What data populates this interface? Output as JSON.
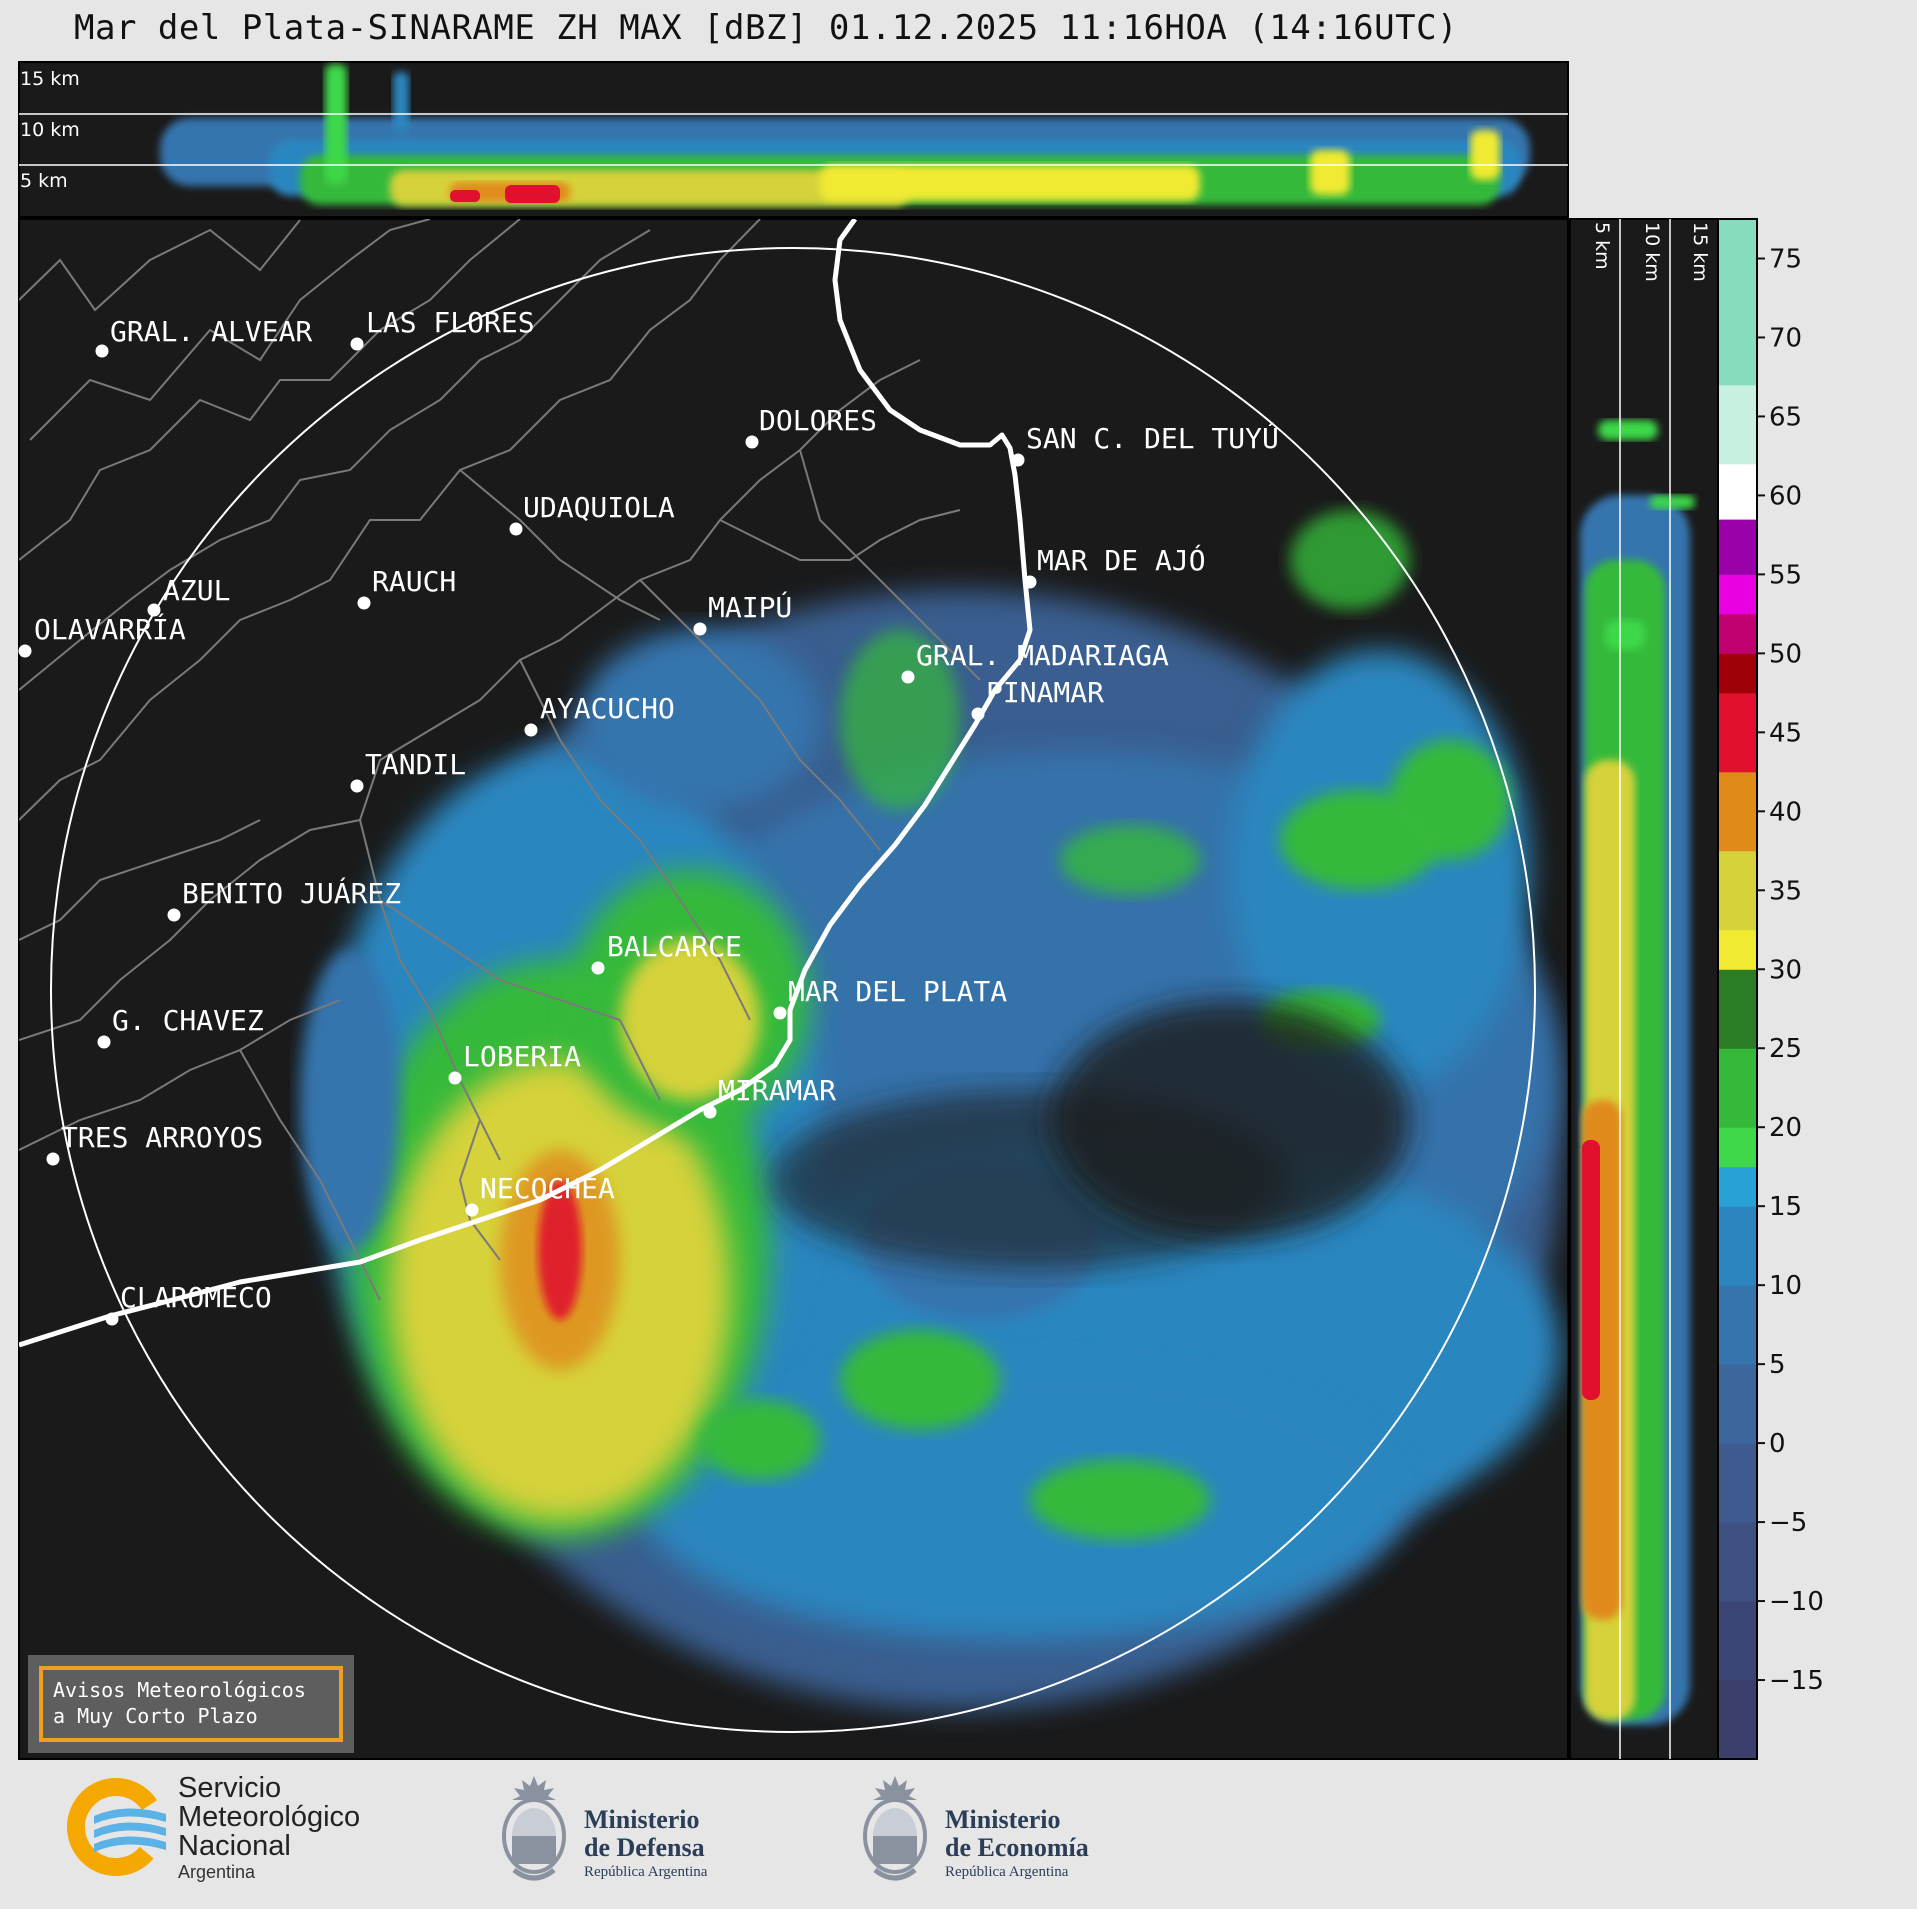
{
  "title": "Mar del Plata-SINARAME ZH MAX [dBZ] 01.12.2025 11:16HOA (14:16UTC)",
  "top_panel": {
    "height_labels": [
      "15 km",
      "10 km",
      "5 km"
    ]
  },
  "side_panel": {
    "height_labels": [
      "5 km",
      "10 km",
      "15 km"
    ]
  },
  "colorbar": {
    "ticks": [
      "75",
      "70",
      "65",
      "60",
      "55",
      "50",
      "45",
      "40",
      "35",
      "30",
      "25",
      "20",
      "15",
      "10",
      "5",
      "0",
      "−5",
      "−10",
      "−15"
    ],
    "tick_values": [
      75,
      70,
      65,
      60,
      55,
      50,
      45,
      40,
      35,
      30,
      25,
      20,
      15,
      10,
      5,
      0,
      -5,
      -10,
      -15
    ],
    "range": [
      -20,
      77.5
    ],
    "stops": [
      {
        "from": -20,
        "to": -15,
        "color": "#3a3f6b"
      },
      {
        "from": -15,
        "to": -10,
        "color": "#3c4676"
      },
      {
        "from": -10,
        "to": -5,
        "color": "#3e4f82"
      },
      {
        "from": -5,
        "to": 0,
        "color": "#3e5a8e"
      },
      {
        "from": 0,
        "to": 5,
        "color": "#3c669c"
      },
      {
        "from": 5,
        "to": 10,
        "color": "#3574ad"
      },
      {
        "from": 10,
        "to": 15,
        "color": "#2b86bf"
      },
      {
        "from": 15,
        "to": 17.5,
        "color": "#28a2d6"
      },
      {
        "from": 17.5,
        "to": 20,
        "color": "#3ed84a"
      },
      {
        "from": 20,
        "to": 25,
        "color": "#36b93a"
      },
      {
        "from": 25,
        "to": 30,
        "color": "#2a7d24"
      },
      {
        "from": 30,
        "to": 32.5,
        "color": "#f0ea30"
      },
      {
        "from": 32.5,
        "to": 37.5,
        "color": "#d6d23a"
      },
      {
        "from": 37.5,
        "to": 42.5,
        "color": "#e08a1a"
      },
      {
        "from": 42.5,
        "to": 47.5,
        "color": "#e0102e"
      },
      {
        "from": 47.5,
        "to": 50,
        "color": "#a00008"
      },
      {
        "from": 50,
        "to": 52.5,
        "color": "#c00070"
      },
      {
        "from": 52.5,
        "to": 55,
        "color": "#e800e0"
      },
      {
        "from": 55,
        "to": 58.5,
        "color": "#9a00a8"
      },
      {
        "from": 58.5,
        "to": 62,
        "color": "#ffffff"
      },
      {
        "from": 62,
        "to": 67,
        "color": "#c8f0e0"
      },
      {
        "from": 67,
        "to": 77.5,
        "color": "#86dcbc"
      }
    ]
  },
  "cities": [
    {
      "name": "GRAL. ALVEAR",
      "id": "gral-alvear"
    },
    {
      "name": "LAS FLORES",
      "id": "las-flores"
    },
    {
      "name": "DOLORES",
      "id": "dolores"
    },
    {
      "name": "SAN C. DEL TUYÚ",
      "id": "san-c-del-tuyu"
    },
    {
      "name": "UDAQUIOLA",
      "id": "udaquiola"
    },
    {
      "name": "MAR DE AJÓ",
      "id": "mar-de-ajo"
    },
    {
      "name": "AZUL",
      "id": "azul"
    },
    {
      "name": "RAUCH",
      "id": "rauch"
    },
    {
      "name": "MAIPÚ",
      "id": "maipu"
    },
    {
      "name": "OLAVARRÍA",
      "id": "olavarria"
    },
    {
      "name": "GRAL. MADARIAGA",
      "id": "gral-madariaga"
    },
    {
      "name": "AYACUCHO",
      "id": "ayacucho"
    },
    {
      "name": "PINAMAR",
      "id": "pinamar"
    },
    {
      "name": "TANDIL",
      "id": "tandil"
    },
    {
      "name": "BENITO JUÁREZ",
      "id": "benito-juarez"
    },
    {
      "name": "BALCARCE",
      "id": "balcarce"
    },
    {
      "name": "MAR DEL PLATA",
      "id": "mar-del-plata"
    },
    {
      "name": "G. CHAVEZ",
      "id": "g-chavez"
    },
    {
      "name": "LOBERIA",
      "id": "loberia"
    },
    {
      "name": "MIRAMAR",
      "id": "miramar"
    },
    {
      "name": "TRES ARROYOS",
      "id": "tres-arroyos"
    },
    {
      "name": "NECOCHEA",
      "id": "necochea"
    },
    {
      "name": "CLAROMECO",
      "id": "claromeco"
    }
  ],
  "notice": {
    "line1": "Avisos Meteorológicos",
    "line2": "a Muy Corto Plazo"
  },
  "logos": {
    "smn": {
      "line1": "Servicio",
      "line2": "Meteorológico",
      "line3": "Nacional",
      "line4": "Argentina"
    },
    "defensa": {
      "line1": "Ministerio",
      "line2": "de Defensa",
      "line3": "República Argentina"
    },
    "economia": {
      "line1": "Ministerio",
      "line2": "de Economía",
      "line3": "República Argentina"
    }
  },
  "colors": {
    "background": "#e6e6e6",
    "panel": "#1a1a1a",
    "notice_border": "#f0a020"
  }
}
